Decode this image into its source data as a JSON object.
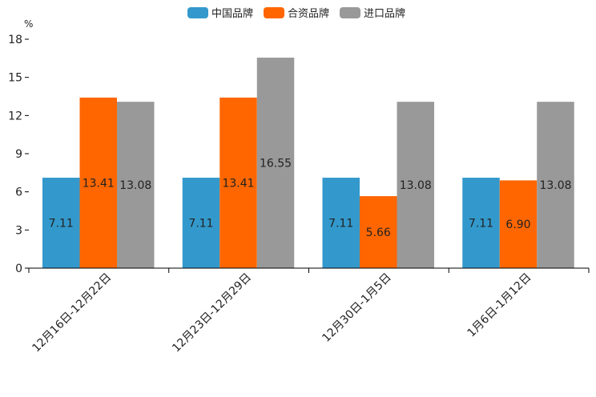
{
  "chart_data": {
    "type": "bar",
    "unit": "%",
    "categories": [
      "12月16日-12月22日",
      "12月23日-12月29日",
      "12月30日-1月5日",
      "1月6日-1月12日"
    ],
    "series": [
      {
        "name": "中国品牌",
        "color": "#3399cc",
        "values": [
          7.11,
          7.11,
          7.11,
          7.11
        ],
        "labels": [
          "7.11",
          "7.11",
          "7.11",
          "7.11"
        ]
      },
      {
        "name": "合资品牌",
        "color": "#ff6600",
        "values": [
          13.41,
          13.41,
          5.66,
          6.9
        ],
        "labels": [
          "13.41",
          "13.41",
          "5.66",
          "6.90"
        ]
      },
      {
        "name": "进口品牌",
        "color": "#999999",
        "values": [
          13.08,
          16.55,
          13.08,
          13.08
        ],
        "labels": [
          "13.08",
          "16.55",
          "13.08",
          "13.08"
        ]
      }
    ],
    "ylim": [
      0,
      18
    ],
    "yticks": [
      0,
      3,
      6,
      9,
      12,
      15,
      18
    ],
    "legend_position": "top-center",
    "grid": false
  }
}
